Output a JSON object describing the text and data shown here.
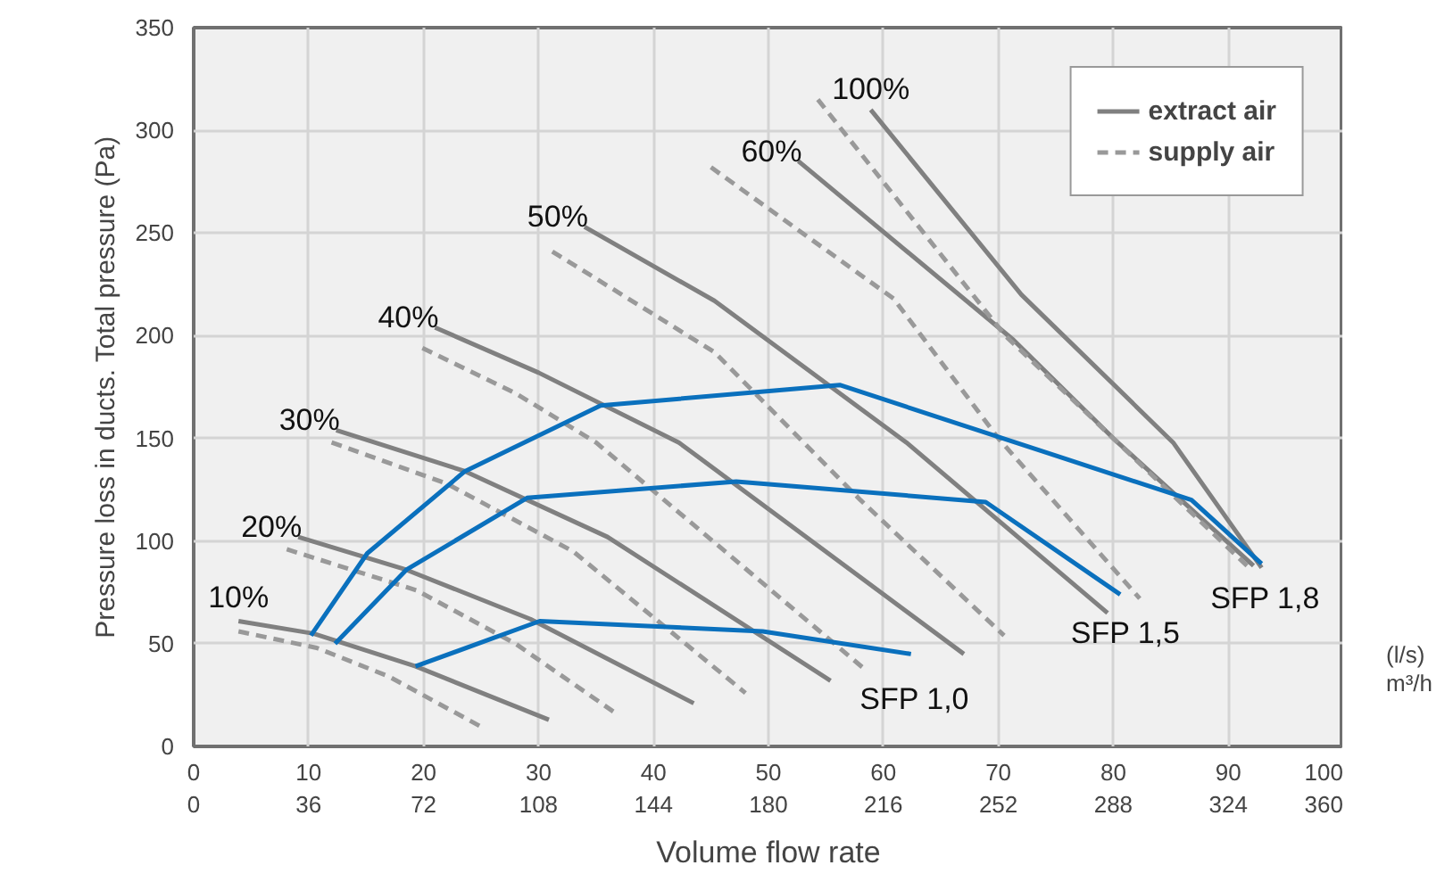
{
  "chart_data": {
    "type": "line",
    "xlabel": "Volume flow rate",
    "ylabel": "Pressure loss in ducts. Total pressure (Pa)",
    "xlim": [
      0,
      100
    ],
    "xticks": [
      0,
      10,
      20,
      30,
      40,
      50,
      60,
      70,
      80,
      90,
      100
    ],
    "x2lim": [
      0,
      360
    ],
    "x2ticks": [
      0,
      36,
      72,
      108,
      144,
      180,
      216,
      252,
      288,
      324,
      360
    ],
    "ylim": [
      0,
      350
    ],
    "yticks": [
      0,
      50,
      100,
      150,
      200,
      250,
      300,
      350
    ],
    "grid": true,
    "legend": "top right",
    "series": [
      {
        "name": "extract air",
        "color": "#808080",
        "line_style": "solid",
        "x": [
          3.9,
          10.4,
          19.3,
          30.9
        ],
        "values": [
          61,
          55,
          39,
          13
        ]
      },
      {
        "name": "supply air",
        "color": "#999999",
        "line_style": "dashed",
        "x": [
          3.9,
          10.7,
          17,
          25.2
        ],
        "values": [
          56,
          48,
          34,
          9
        ]
      },
      {
        "color": "#808080",
        "line_style": "solid",
        "x": [
          9.1,
          18.5,
          29.3,
          43.5
        ],
        "values": [
          102,
          86,
          62,
          21
        ]
      },
      {
        "color": "#999999",
        "line_style": "dashed",
        "x": [
          8.1,
          19.4,
          28,
          36.5
        ],
        "values": [
          96,
          76,
          50,
          17
        ]
      },
      {
        "color": "#808080",
        "line_style": "solid",
        "x": [
          12.4,
          23.6,
          36,
          55.4
        ],
        "values": [
          154,
          134,
          102,
          32
        ]
      },
      {
        "color": "#999999",
        "line_style": "dashed",
        "x": [
          12,
          22,
          33,
          48
        ],
        "values": [
          148,
          128,
          95,
          26
        ]
      },
      {
        "color": "#808080",
        "line_style": "solid",
        "x": [
          21,
          30,
          42.2,
          67
        ],
        "values": [
          204,
          182,
          148,
          45
        ]
      },
      {
        "color": "#999999",
        "line_style": "dashed",
        "x": [
          19.9,
          28,
          35,
          58.5
        ],
        "values": [
          194,
          172,
          148,
          37
        ]
      },
      {
        "color": "#808080",
        "line_style": "solid",
        "x": [
          34,
          45.3,
          62,
          79.5
        ],
        "values": [
          253,
          217,
          148,
          65
        ]
      },
      {
        "color": "#999999",
        "line_style": "dashed",
        "x": [
          31.2,
          45.3,
          58,
          70.5
        ],
        "values": [
          241,
          192,
          120,
          54
        ]
      },
      {
        "color": "#808080",
        "line_style": "solid",
        "x": [
          52.6,
          71.3,
          80,
          92.2
        ],
        "values": [
          285,
          198,
          150,
          88
        ]
      },
      {
        "color": "#999999",
        "line_style": "dashed",
        "x": [
          45,
          60.9,
          70,
          82.3
        ],
        "values": [
          282,
          218,
          150,
          72
        ]
      },
      {
        "color": "#808080",
        "line_style": "solid",
        "x": [
          58.9,
          72,
          85.2,
          92.9
        ],
        "values": [
          310,
          220,
          148,
          87
        ]
      },
      {
        "color": "#999999",
        "line_style": "dashed",
        "x": [
          54.3,
          70.6,
          80,
          92
        ],
        "values": [
          315,
          200,
          150,
          86
        ]
      },
      {
        "color": "#0a70bd",
        "line_style": "solid",
        "x": [
          19.3,
          30.1,
          49.5,
          62.4
        ],
        "values": [
          39,
          61,
          56,
          45
        ]
      },
      {
        "color": "#0a70bd",
        "line_style": "solid",
        "x": [
          12.3,
          18.5,
          29,
          47.2,
          68.9,
          80.6
        ],
        "values": [
          50,
          86,
          121,
          129,
          119,
          74
        ]
      },
      {
        "color": "#0a70bd",
        "line_style": "solid",
        "x": [
          10.2,
          15.1,
          23.6,
          35.4,
          56.2,
          86.8,
          92.9
        ],
        "values": [
          54,
          94,
          134,
          166,
          176,
          120,
          89
        ]
      }
    ],
    "annotations": [
      "10%",
      "20%",
      "30%",
      "40%",
      "50%",
      "60%",
      "100%",
      "SFP 1,0",
      "SFP 1,5",
      "SFP 1,8",
      "(l/s)",
      "m³/h"
    ]
  }
}
